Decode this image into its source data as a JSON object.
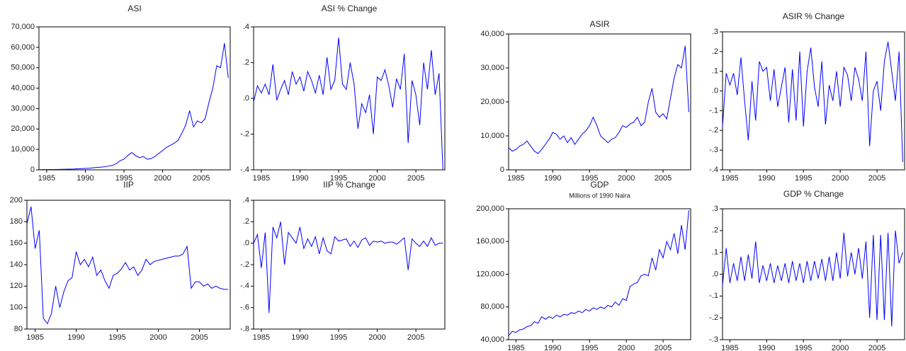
{
  "chart_data": [
    {
      "type": "line",
      "title": "ASI",
      "color": "#0000ff",
      "x": [
        1984,
        1984.5,
        1985,
        1985.5,
        1986,
        1986.5,
        1987,
        1987.5,
        1988,
        1988.5,
        1989,
        1989.5,
        1990,
        1990.5,
        1991,
        1991.5,
        1992,
        1992.5,
        1993,
        1993.5,
        1994,
        1994.5,
        1995,
        1995.5,
        1996,
        1996.5,
        1997,
        1997.5,
        1998,
        1998.5,
        1999,
        1999.5,
        2000,
        2000.5,
        2001,
        2001.5,
        2002,
        2002.5,
        2003,
        2003.5,
        2004,
        2004.5,
        2005,
        2005.5,
        2006,
        2006.5,
        2007,
        2007.5,
        2008,
        2008.5
      ],
      "values": [
        100,
        120,
        140,
        160,
        180,
        200,
        250,
        300,
        350,
        400,
        500,
        600,
        700,
        800,
        1000,
        1200,
        1300,
        1500,
        1800,
        2200,
        3000,
        4500,
        5200,
        7000,
        8500,
        7000,
        6000,
        6500,
        5200,
        5500,
        6500,
        8000,
        9500,
        11000,
        12000,
        13000,
        14500,
        18000,
        22000,
        29000,
        21000,
        24000,
        23000,
        25000,
        33000,
        40000,
        51000,
        50000,
        62000,
        45000
      ],
      "xlim": [
        1984,
        2008.75
      ],
      "xticks": [
        1985,
        1990,
        1995,
        2000,
        2005
      ],
      "ylim": [
        0,
        70000
      ],
      "yticks": [
        0,
        {
          "value": 10000,
          "label": "10,000"
        },
        {
          "value": 20000,
          "label": "20,000"
        },
        {
          "value": 30000,
          "label": "30,000"
        },
        {
          "value": 40000,
          "label": "40,000"
        },
        {
          "value": 50000,
          "label": "50,000"
        },
        {
          "value": 60000,
          "label": "60,000"
        },
        {
          "value": 70000,
          "label": "70,000"
        }
      ]
    },
    {
      "type": "line",
      "title": "ASI % Change",
      "color": "#0000ff",
      "x": [
        1984,
        1984.5,
        1985,
        1985.5,
        1986,
        1986.5,
        1987,
        1987.5,
        1988,
        1988.5,
        1989,
        1989.5,
        1990,
        1990.5,
        1991,
        1991.5,
        1992,
        1992.5,
        1993,
        1993.5,
        1994,
        1994.5,
        1995,
        1995.5,
        1996,
        1996.5,
        1997,
        1997.5,
        1998,
        1998.5,
        1999,
        1999.5,
        2000,
        2000.5,
        2001,
        2001.5,
        2002,
        2002.5,
        2003,
        2003.5,
        2004,
        2004.5,
        2005,
        2005.5,
        2006,
        2006.5,
        2007,
        2007.5,
        2008,
        2008.5
      ],
      "values": [
        -0.02,
        0.07,
        0.03,
        0.08,
        0.02,
        0.19,
        -0.01,
        0.05,
        0.1,
        0.02,
        0.15,
        0.08,
        0.12,
        0.04,
        0.15,
        0.1,
        0.03,
        0.13,
        0.02,
        0.23,
        0.05,
        0.1,
        0.34,
        0.08,
        0.05,
        0.2,
        0.08,
        -0.17,
        -0.03,
        -0.08,
        0.02,
        -0.2,
        0.12,
        0.1,
        0.16,
        0.07,
        -0.05,
        0.11,
        0.05,
        0.25,
        -0.25,
        0.1,
        0.02,
        -0.15,
        0.2,
        0.05,
        0.27,
        0.02,
        0.14,
        -0.4
      ],
      "xlim": [
        1984,
        2008.75
      ],
      "xticks": [
        1985,
        1990,
        1995,
        2000,
        2005
      ],
      "ylim": [
        -0.4,
        0.4
      ],
      "yticks": [
        {
          "value": -0.4,
          "label": "-.4"
        },
        {
          "value": -0.2,
          "label": "-.2"
        },
        {
          "value": 0,
          "label": ".0"
        },
        {
          "value": 0.2,
          "label": ".2"
        },
        {
          "value": 0.4,
          "label": ".4"
        }
      ]
    },
    {
      "type": "line",
      "title": "ASIR",
      "color": "#0000ff",
      "x": [
        1984,
        1984.5,
        1985,
        1985.5,
        1986,
        1986.5,
        1987,
        1987.5,
        1988,
        1988.5,
        1989,
        1989.5,
        1990,
        1990.5,
        1991,
        1991.5,
        1992,
        1992.5,
        1993,
        1993.5,
        1994,
        1994.5,
        1995,
        1995.5,
        1996,
        1996.5,
        1997,
        1997.5,
        1998,
        1998.5,
        1999,
        1999.5,
        2000,
        2000.5,
        2001,
        2001.5,
        2002,
        2002.5,
        2003,
        2003.5,
        2004,
        2004.5,
        2005,
        2005.5,
        2006,
        2006.5,
        2007,
        2007.5,
        2008,
        2008.5
      ],
      "values": [
        6500,
        5500,
        6000,
        7000,
        7500,
        8500,
        7000,
        5500,
        4800,
        6000,
        7500,
        9000,
        11000,
        10500,
        9000,
        10000,
        8000,
        9500,
        7500,
        9000,
        10500,
        11500,
        13000,
        15500,
        13000,
        10000,
        9000,
        8000,
        9000,
        9500,
        11000,
        13000,
        12500,
        13500,
        14000,
        15500,
        13000,
        14000,
        20000,
        24000,
        17000,
        15500,
        16500,
        15000,
        21000,
        27000,
        31000,
        30000,
        36500,
        17000
      ],
      "xlim": [
        1984,
        2008.75
      ],
      "xticks": [
        1985,
        1990,
        1995,
        2000,
        2005
      ],
      "ylim": [
        0,
        40000
      ],
      "yticks": [
        0,
        {
          "value": 10000,
          "label": "10,000"
        },
        {
          "value": 20000,
          "label": "20,000"
        },
        {
          "value": 30000,
          "label": "30,000"
        },
        {
          "value": 40000,
          "label": "40,000"
        }
      ]
    },
    {
      "type": "line",
      "title": "ASIR % Change",
      "color": "#0000ff",
      "x": [
        1984,
        1984.5,
        1985,
        1985.5,
        1986,
        1986.5,
        1987,
        1987.5,
        1988,
        1988.5,
        1989,
        1989.5,
        1990,
        1990.5,
        1991,
        1991.5,
        1992,
        1992.5,
        1993,
        1993.5,
        1994,
        1994.5,
        1995,
        1995.5,
        1996,
        1996.5,
        1997,
        1997.5,
        1998,
        1998.5,
        1999,
        1999.5,
        2000,
        2000.5,
        2001,
        2001.5,
        2002,
        2002.5,
        2003,
        2003.5,
        2004,
        2004.5,
        2005,
        2005.5,
        2006,
        2006.5,
        2007,
        2007.5,
        2008,
        2008.5
      ],
      "values": [
        -0.18,
        0.09,
        0.03,
        0.09,
        -0.02,
        0.17,
        -0.05,
        -0.25,
        0.05,
        -0.15,
        0.15,
        0.1,
        0.12,
        -0.05,
        0.11,
        -0.08,
        0.02,
        0.12,
        -0.16,
        0.11,
        -0.15,
        0.2,
        -0.18,
        0.1,
        0.22,
        0.02,
        -0.08,
        0.15,
        -0.17,
        0.03,
        -0.05,
        0.1,
        -0.08,
        0.12,
        0.08,
        -0.05,
        0.12,
        0.06,
        -0.05,
        0.2,
        -0.28,
        0.0,
        0.05,
        -0.1,
        0.15,
        0.25,
        0.1,
        -0.05,
        0.2,
        -0.36
      ],
      "xlim": [
        1984,
        2008.75
      ],
      "xticks": [
        1985,
        1990,
        1995,
        2000,
        2005
      ],
      "ylim": [
        -0.4,
        0.3
      ],
      "yticks": [
        {
          "value": -0.4,
          "label": "-.4"
        },
        {
          "value": -0.3,
          "label": "-.3"
        },
        {
          "value": -0.2,
          "label": "-.2"
        },
        {
          "value": -0.1,
          "label": "-.1"
        },
        {
          "value": 0,
          "label": ".0"
        },
        {
          "value": 0.1,
          "label": ".1"
        },
        {
          "value": 0.2,
          "label": ".2"
        },
        {
          "value": 0.3,
          "label": ".3"
        }
      ]
    },
    {
      "type": "line",
      "title": "IIP",
      "color": "#0000ff",
      "x": [
        1984,
        1984.5,
        1985,
        1985.5,
        1986,
        1986.5,
        1987,
        1987.5,
        1988,
        1988.5,
        1989,
        1989.5,
        1990,
        1990.5,
        1991,
        1991.5,
        1992,
        1992.5,
        1993,
        1993.5,
        1994,
        1994.5,
        1995,
        1995.5,
        1996,
        1996.5,
        1997,
        1997.5,
        1998,
        1998.5,
        1999,
        1999.5,
        2000,
        2000.5,
        2001,
        2001.5,
        2002,
        2002.5,
        2003,
        2003.5,
        2004,
        2004.5,
        2005,
        2005.5,
        2006,
        2006.5,
        2007,
        2007.5,
        2008,
        2008.5
      ],
      "values": [
        178,
        194,
        155,
        172,
        90,
        85,
        95,
        120,
        100,
        115,
        125,
        128,
        152,
        140,
        145,
        138,
        147,
        130,
        135,
        125,
        118,
        130,
        132,
        136,
        142,
        135,
        138,
        130,
        135,
        145,
        140,
        143,
        144,
        145,
        146,
        147,
        148,
        148,
        150,
        157,
        118,
        124,
        124,
        120,
        122,
        118,
        120,
        118,
        117,
        117
      ],
      "xlim": [
        1984,
        2008.75
      ],
      "xticks": [
        1985,
        1990,
        1995,
        2000,
        2005
      ],
      "ylim": [
        80,
        200
      ],
      "yticks": [
        80,
        100,
        120,
        140,
        160,
        180,
        200
      ]
    },
    {
      "type": "line",
      "title": "IIP % Change",
      "color": "#0000ff",
      "x": [
        1984,
        1984.5,
        1985,
        1985.5,
        1986,
        1986.5,
        1987,
        1987.5,
        1988,
        1988.5,
        1989,
        1989.5,
        1990,
        1990.5,
        1991,
        1991.5,
        1992,
        1992.5,
        1993,
        1993.5,
        1994,
        1994.5,
        1995,
        1995.5,
        1996,
        1996.5,
        1997,
        1997.5,
        1998,
        1998.5,
        1999,
        1999.5,
        2000,
        2000.5,
        2001,
        2001.5,
        2002,
        2002.5,
        2003,
        2003.5,
        2004,
        2004.5,
        2005,
        2005.5,
        2006,
        2006.5,
        2007,
        2007.5,
        2008,
        2008.5
      ],
      "values": [
        0.0,
        0.08,
        -0.23,
        0.1,
        -0.65,
        0.15,
        0.05,
        0.2,
        -0.2,
        0.1,
        0.05,
        0.0,
        0.15,
        -0.05,
        0.04,
        -0.03,
        0.06,
        -0.1,
        0.05,
        -0.07,
        -0.1,
        0.06,
        0.02,
        0.03,
        0.04,
        -0.03,
        0.02,
        -0.04,
        0.03,
        0.05,
        -0.02,
        0.02,
        0.01,
        0.02,
        0.0,
        0.01,
        0.01,
        -0.01,
        0.02,
        0.05,
        -0.25,
        0.04,
        0.0,
        -0.03,
        0.02,
        -0.03,
        0.05,
        -0.02,
        0.0,
        0.0
      ],
      "xlim": [
        1984,
        2008.75
      ],
      "xticks": [
        1985,
        1990,
        1995,
        2000,
        2005
      ],
      "ylim": [
        -0.8,
        0.4
      ],
      "yticks": [
        {
          "value": -0.8,
          "label": "-.8"
        },
        {
          "value": -0.6,
          "label": "-.6"
        },
        {
          "value": -0.4,
          "label": "-.4"
        },
        {
          "value": -0.2,
          "label": "-.2"
        },
        {
          "value": 0,
          "label": ".0"
        },
        {
          "value": 0.2,
          "label": ".2"
        },
        {
          "value": 0.4,
          "label": ".4"
        }
      ]
    },
    {
      "type": "line",
      "title": "GDP",
      "subtitle": "Millions of 1990 Naira",
      "color": "#0000ff",
      "x": [
        1984,
        1984.5,
        1985,
        1985.5,
        1986,
        1986.5,
        1987,
        1987.5,
        1988,
        1988.5,
        1989,
        1989.5,
        1990,
        1990.5,
        1991,
        1991.5,
        1992,
        1992.5,
        1993,
        1993.5,
        1994,
        1994.5,
        1995,
        1995.5,
        1996,
        1996.5,
        1997,
        1997.5,
        1998,
        1998.5,
        1999,
        1999.5,
        2000,
        2000.5,
        2001,
        2001.5,
        2002,
        2002.5,
        2003,
        2003.5,
        2004,
        2004.5,
        2005,
        2005.5,
        2006,
        2006.5,
        2007,
        2007.5,
        2008,
        2008.5
      ],
      "values": [
        45000,
        50000,
        49000,
        52000,
        53000,
        56000,
        57000,
        62000,
        60000,
        68000,
        65000,
        68000,
        66000,
        70000,
        68000,
        71000,
        70000,
        73000,
        72000,
        75000,
        73000,
        77000,
        75000,
        79000,
        77000,
        80000,
        78000,
        82000,
        80000,
        86000,
        82000,
        90000,
        88000,
        105000,
        108000,
        110000,
        118000,
        120000,
        118000,
        140000,
        125000,
        150000,
        140000,
        160000,
        150000,
        170000,
        145000,
        180000,
        150000,
        198000
      ],
      "xlim": [
        1984,
        2008.75
      ],
      "xticks": [
        1985,
        1990,
        1995,
        2000,
        2005
      ],
      "ylim": [
        40000,
        200000
      ],
      "yticks": [
        {
          "value": 40000,
          "label": "40,000"
        },
        {
          "value": 80000,
          "label": "80,000"
        },
        {
          "value": 120000,
          "label": "120,000"
        },
        {
          "value": 160000,
          "label": "160,000"
        },
        {
          "value": 200000,
          "label": "200,000"
        }
      ]
    },
    {
      "type": "line",
      "title": "GDP % Change",
      "color": "#0000ff",
      "x": [
        1984,
        1984.5,
        1985,
        1985.5,
        1986,
        1986.5,
        1987,
        1987.5,
        1988,
        1988.5,
        1989,
        1989.5,
        1990,
        1990.5,
        1991,
        1991.5,
        1992,
        1992.5,
        1993,
        1993.5,
        1994,
        1994.5,
        1995,
        1995.5,
        1996,
        1996.5,
        1997,
        1997.5,
        1998,
        1998.5,
        1999,
        1999.5,
        2000,
        2000.5,
        2001,
        2001.5,
        2002,
        2002.5,
        2003,
        2003.5,
        2004,
        2004.5,
        2005,
        2005.5,
        2006,
        2006.5,
        2007,
        2007.5,
        2008,
        2008.5
      ],
      "values": [
        -0.05,
        0.12,
        -0.04,
        0.05,
        -0.03,
        0.08,
        -0.03,
        0.09,
        -0.02,
        0.15,
        -0.04,
        0.04,
        -0.03,
        0.05,
        -0.04,
        0.04,
        -0.03,
        0.05,
        -0.04,
        0.06,
        -0.03,
        0.05,
        -0.04,
        0.06,
        -0.03,
        0.06,
        -0.02,
        0.07,
        -0.03,
        0.08,
        -0.03,
        0.1,
        -0.02,
        0.19,
        -0.01,
        0.1,
        0.0,
        0.12,
        -0.02,
        0.15,
        -0.2,
        0.18,
        -0.21,
        0.18,
        -0.21,
        0.19,
        -0.24,
        0.2,
        0.05,
        0.1
      ],
      "xlim": [
        1984,
        2008.75
      ],
      "xticks": [
        1985,
        1990,
        1995,
        2000,
        2005
      ],
      "ylim": [
        -0.3,
        0.3
      ],
      "yticks": [
        {
          "value": -0.3,
          "label": "-.3"
        },
        {
          "value": -0.2,
          "label": "-.2"
        },
        {
          "value": -0.1,
          "label": "-.1"
        },
        {
          "value": 0,
          "label": ".0"
        },
        {
          "value": 0.1,
          "label": ".1"
        },
        {
          "value": 0.2,
          "label": ".2"
        },
        {
          "value": 0.3,
          "label": ".3"
        }
      ]
    }
  ]
}
